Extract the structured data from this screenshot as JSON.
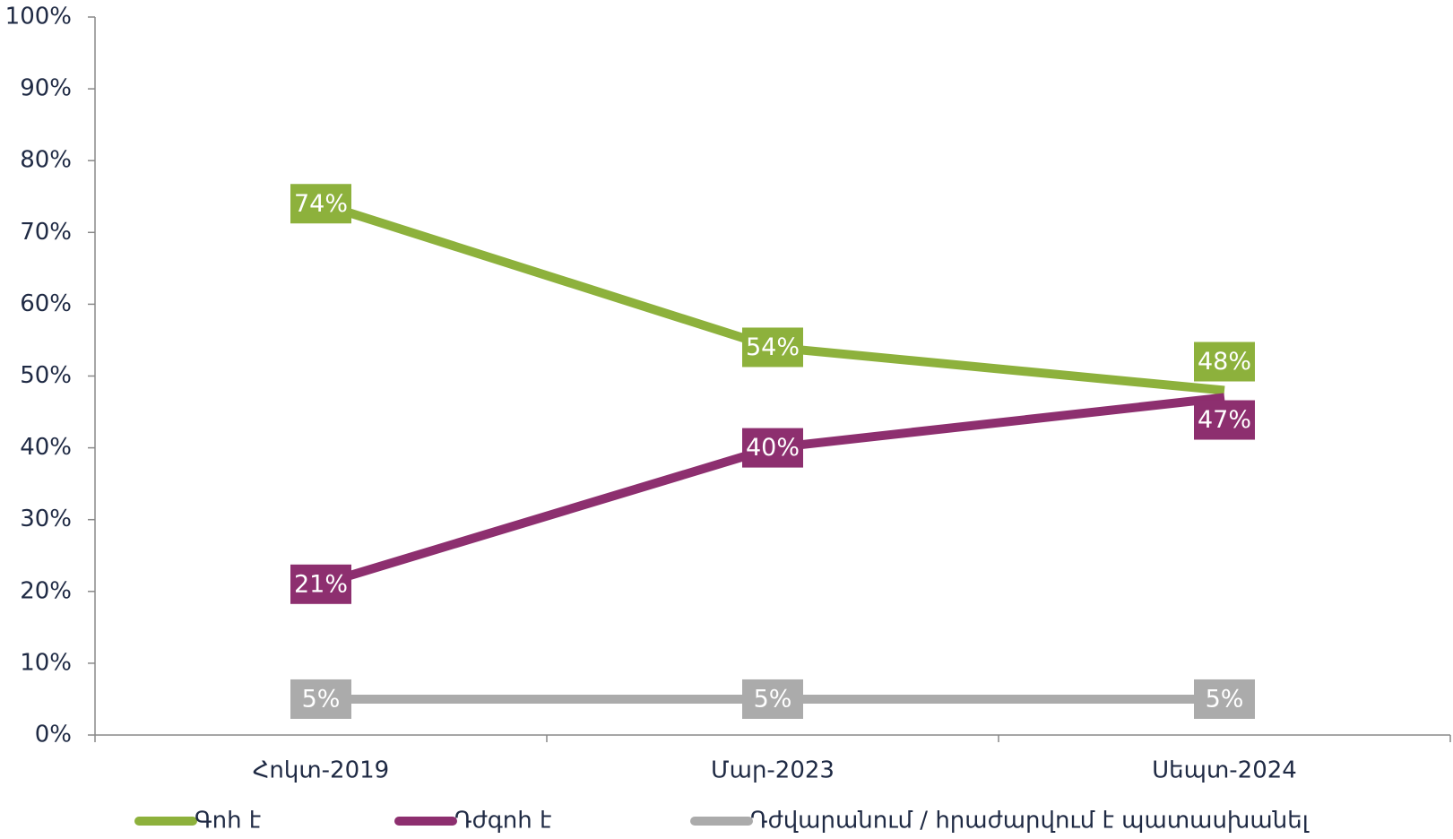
{
  "chart_data": {
    "type": "line",
    "categories": [
      "Հոկտ-2019",
      "Մար-2023",
      "Սեպտ-2024"
    ],
    "series": [
      {
        "name": "Գոհ է",
        "color": "#8db13c",
        "values": [
          74,
          54,
          48
        ],
        "value_labels": [
          "74%",
          "54%",
          "48%"
        ]
      },
      {
        "name": "Դժգոհ է",
        "color": "#8d2f6f",
        "values": [
          21,
          40,
          47
        ],
        "value_labels": [
          "21%",
          "40%",
          "47%"
        ]
      },
      {
        "name": "Դժվարանում / հրաժարվում է պատասխանել",
        "color": "#ababab",
        "values": [
          5,
          5,
          5
        ],
        "value_labels": [
          "5%",
          "5%",
          "5%"
        ]
      }
    ],
    "ylim": [
      0,
      100
    ],
    "yticks": [
      {
        "value": 0,
        "label": "0%"
      },
      {
        "value": 10,
        "label": "10%"
      },
      {
        "value": 20,
        "label": "20%"
      },
      {
        "value": 30,
        "label": "30%"
      },
      {
        "value": 40,
        "label": "40%"
      },
      {
        "value": 50,
        "label": "50%"
      },
      {
        "value": 60,
        "label": "60%"
      },
      {
        "value": 70,
        "label": "70%"
      },
      {
        "value": 80,
        "label": "80%"
      },
      {
        "value": 90,
        "label": "90%"
      },
      {
        "value": 100,
        "label": "100%"
      }
    ],
    "grid": false,
    "legend": "bottom"
  }
}
